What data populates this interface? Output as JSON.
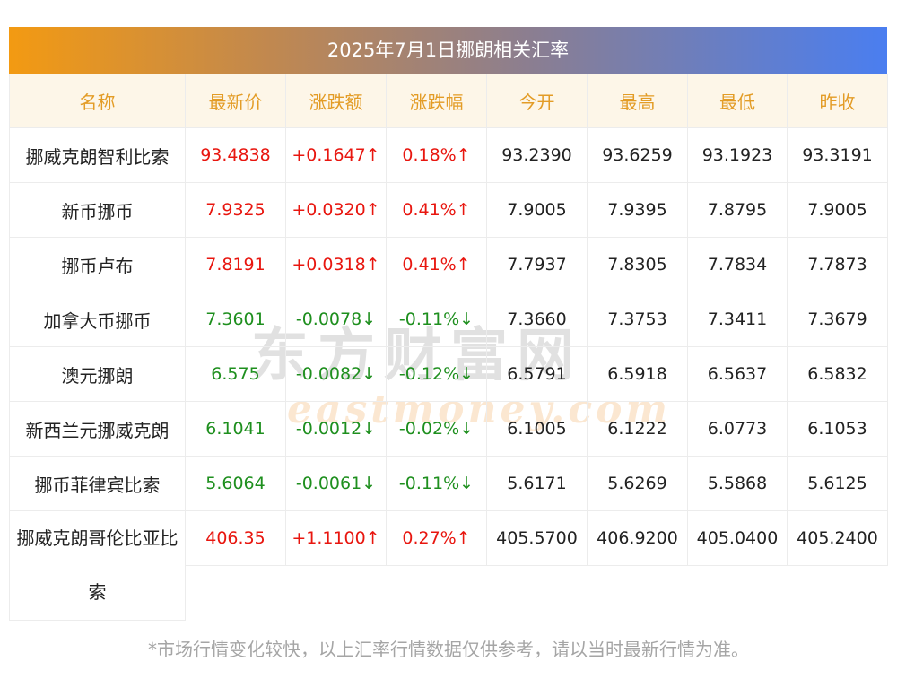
{
  "title": "2025年7月1日挪朗相关汇率",
  "headers": [
    "名称",
    "最新价",
    "涨跌额",
    "涨跌幅",
    "今开",
    "最高",
    "最低",
    "昨收"
  ],
  "rows": [
    {
      "name": "挪威克朗智利比索",
      "latest": "93.4838",
      "change": "+0.1647↑",
      "pct": "0.18%↑",
      "open": "93.2390",
      "high": "93.6259",
      "low": "93.1923",
      "prev": "93.3191",
      "dir": "up"
    },
    {
      "name": "新币挪币",
      "latest": "7.9325",
      "change": "+0.0320↑",
      "pct": "0.41%↑",
      "open": "7.9005",
      "high": "7.9395",
      "low": "7.8795",
      "prev": "7.9005",
      "dir": "up"
    },
    {
      "name": "挪币卢布",
      "latest": "7.8191",
      "change": "+0.0318↑",
      "pct": "0.41%↑",
      "open": "7.7937",
      "high": "7.8305",
      "low": "7.7834",
      "prev": "7.7873",
      "dir": "up"
    },
    {
      "name": "加拿大币挪币",
      "latest": "7.3601",
      "change": "-0.0078↓",
      "pct": "-0.11%↓",
      "open": "7.3660",
      "high": "7.3753",
      "low": "7.3411",
      "prev": "7.3679",
      "dir": "down"
    },
    {
      "name": "澳元挪朗",
      "latest": "6.575",
      "change": "-0.0082↓",
      "pct": "-0.12%↓",
      "open": "6.5791",
      "high": "6.5918",
      "low": "6.5637",
      "prev": "6.5832",
      "dir": "down"
    },
    {
      "name": "新西兰元挪威克朗",
      "latest": "6.1041",
      "change": "-0.0012↓",
      "pct": "-0.02%↓",
      "open": "6.1005",
      "high": "6.1222",
      "low": "6.0773",
      "prev": "6.1053",
      "dir": "down"
    },
    {
      "name": "挪币菲律宾比索",
      "latest": "5.6064",
      "change": "-0.0061↓",
      "pct": "-0.11%↓",
      "open": "5.6171",
      "high": "5.6269",
      "low": "5.5868",
      "prev": "5.6125",
      "dir": "down"
    },
    {
      "name": "挪威克朗哥伦比亚比索",
      "latest": "406.35",
      "change": "+1.1100↑",
      "pct": "0.27%↑",
      "open": "405.5700",
      "high": "406.9200",
      "low": "405.0400",
      "prev": "405.2400",
      "dir": "up"
    }
  ],
  "watermark": {
    "cn": "东方财富网",
    "en": "eastmoney.com"
  },
  "footnote": "*市场行情变化较快，以上汇率行情数据仅供参考，请以当时最新行情为准。",
  "colors": {
    "up": "#e8160f",
    "down": "#1e8f1e",
    "header_text": "#e39c26",
    "header_bg": "#fdf6e8"
  }
}
